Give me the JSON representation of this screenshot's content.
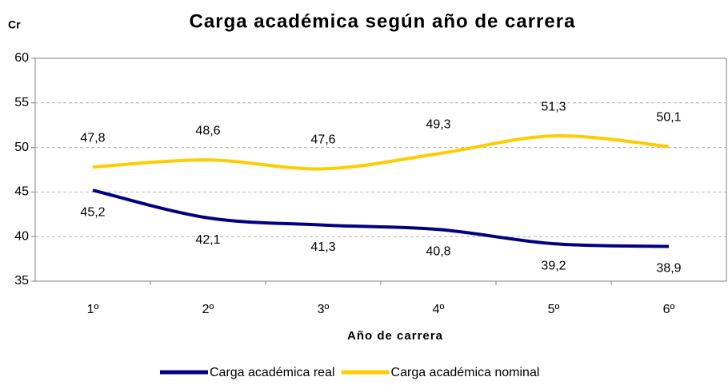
{
  "chart_data": {
    "type": "line",
    "title": "Carga académica según año de carrera",
    "y_label": "Cr",
    "x_label": "Año de carrera",
    "categories": [
      "1º",
      "2º",
      "3º",
      "4º",
      "5º",
      "6º"
    ],
    "series": [
      {
        "name": "Carga académica real",
        "color": "#000080",
        "values": [
          45.2,
          42.1,
          41.3,
          40.8,
          39.2,
          38.9
        ],
        "value_labels": [
          "45,2",
          "42,1",
          "41,3",
          "40,8",
          "39,2",
          "38,9"
        ]
      },
      {
        "name": "Carga académica nominal",
        "color": "#ffcc00",
        "values": [
          47.8,
          48.6,
          47.6,
          49.3,
          51.3,
          50.1
        ],
        "value_labels": [
          "47,8",
          "48,6",
          "47,6",
          "49,3",
          "51,3",
          "50,1"
        ]
      }
    ],
    "ylim": [
      35,
      60
    ],
    "yticks": [
      35,
      40,
      45,
      50,
      55,
      60
    ],
    "grid": true
  }
}
